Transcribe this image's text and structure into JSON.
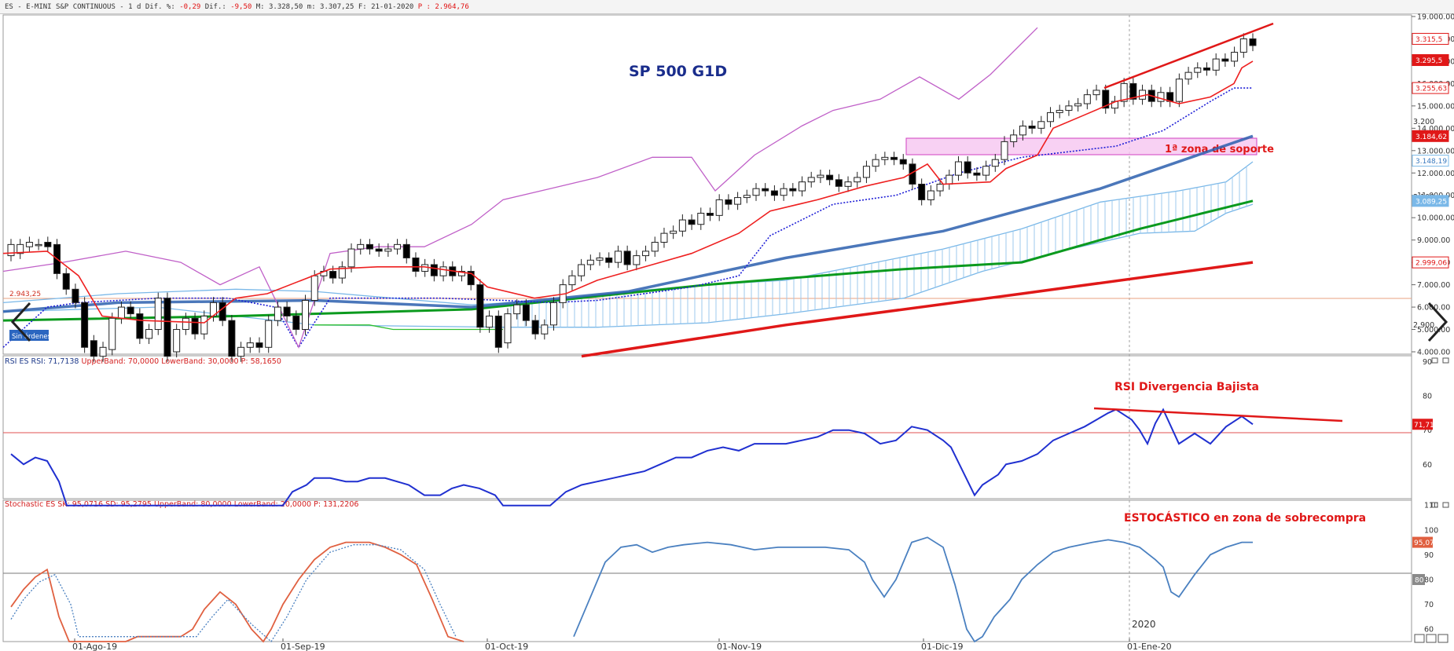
{
  "header": {
    "symbol": "ES - E-MINI S&P CONTINUOUS -",
    "interval": "1 d",
    "dif_pct_label": "Dif. %:",
    "dif_pct": "-0,29",
    "dif_label": "Dif.:",
    "dif": "-9,50",
    "high_label": "M:",
    "high": "3.328,50",
    "low_label": "m:",
    "low": "3.307,25",
    "date_label": "F:",
    "date": "21-01-2020",
    "price_label": "P :",
    "price": "2.964,76"
  },
  "annotations": {
    "main_title": "SP 500 G1D",
    "support_zone": "1ª zona de soporte",
    "rsi_divergence": "RSI Divergencia Bajista",
    "stoch_overbought": "ESTOCÁSTICO en zona de sobrecompra",
    "no_orders": "Sin órdenes",
    "hline_label": "2.943,25"
  },
  "rsi_header": {
    "name": "RSI ES RSI:",
    "value": "71,7138",
    "upper_label": "UpperBand:",
    "upper": "70,0000",
    "lower_label": "LowerBand:",
    "lower": "30,0000",
    "p_label": "P:",
    "p": "58,1650"
  },
  "stoch_header": {
    "name": "Stochastic ES SK:",
    "sk": "95,0716",
    "sd_label": "SD:",
    "sd": "95,2795",
    "upper_label": "UpperBand:",
    "upper": "80,0000",
    "lower_label": "LowerBand:",
    "lower": "20,0000",
    "p_label": "P:",
    "p": "131,2206"
  },
  "x_ticks": [
    "01-Ago-19",
    "01-Sep-19",
    "01-Oct-19",
    "01-Nov-19",
    "01-Dic-19",
    "01-Ene-20"
  ],
  "year_label": "2020",
  "colors": {
    "bull": "#ffffff",
    "bear": "#000000",
    "sma_long": "#e01818",
    "sma_mid": "#0b9a1e",
    "sma_blue": "#2b5fae",
    "tenkan": "#ee2020",
    "kijun": "#1f1fd6",
    "chikou": "#c060c8",
    "cloud": "#7ab8e8",
    "rsi": "#2030d0",
    "stoch_k": "#e06040",
    "stoch_d": "#4a80c0"
  },
  "chart_data": [
    {
      "type": "candlestick",
      "title": "SP 500 G1D",
      "x": [
        "01-Ago-19",
        "01-Sep-19",
        "01-Oct-19",
        "01-Nov-19",
        "01-Dic-19",
        "01-Ene-20"
      ],
      "price_axis_left": [
        4000,
        5000,
        6000,
        7000,
        8000,
        9000,
        10000,
        11000,
        12000,
        13000,
        14000,
        15000,
        16000,
        17000,
        18000,
        19000
      ],
      "price_axis_left_labels": [
        "4.000.00",
        "5.000.00",
        "6.000.00",
        "7.000.00",
        "8.000.00",
        "9.000.00",
        "10.000.00",
        "11.000.00",
        "12.000.00",
        "13.000.00",
        "14.000.00",
        "15.000.00",
        "16.000.00",
        "17.000.00",
        "18.000.00",
        "19.000.00"
      ],
      "price_axis_right_labels": [
        "2.900",
        "3.100",
        "3.200"
      ],
      "last_price_labels": [
        {
          "text": "3.315,5",
          "value": 18000
        },
        {
          "text": "3.295,5",
          "value": 17050
        },
        {
          "text": "3.255,63",
          "value": 15800
        },
        {
          "text": "3.184,62",
          "value": 13650
        },
        {
          "text": "3.148,19",
          "value": 12550
        },
        {
          "text": "3.089,25",
          "value": 10750
        },
        {
          "text": "2.999,06",
          "value": 8000
        }
      ],
      "ylim": [
        4000,
        19000
      ]
    },
    {
      "type": "line",
      "title": "RSI ES RSI",
      "ytick_labels": [
        "60",
        "70",
        "80",
        "90"
      ],
      "ylim": [
        50,
        91
      ],
      "upper_band": 70,
      "last_value_label": "71,71"
    },
    {
      "type": "line",
      "title": "Stochastic ES",
      "ytick_labels": [
        "60",
        "70",
        "80",
        "90",
        "100",
        "110"
      ],
      "ylim": [
        55,
        111
      ],
      "band_line": 80,
      "last_value_labels": [
        "95,07",
        "80"
      ]
    }
  ]
}
